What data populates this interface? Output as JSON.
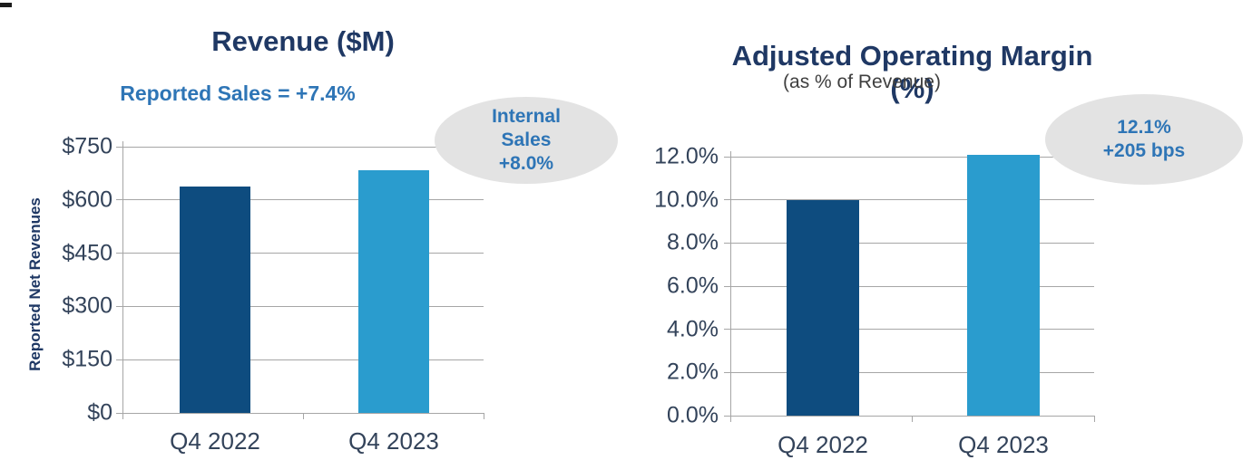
{
  "page": {
    "background": "#ffffff"
  },
  "chart_data": [
    {
      "type": "bar",
      "title": "Revenue ($M)",
      "subtitle": "Reported Sales = +7.4%",
      "ylabel": "Reported Net Revenues",
      "xlabel": "",
      "categories": [
        "Q4 2022",
        "Q4 2023"
      ],
      "values": [
        637,
        684
      ],
      "ylim": [
        0,
        750
      ],
      "ytick_labels": [
        "$750",
        "$600",
        "$450",
        "$300",
        "$150",
        "$0"
      ],
      "grid": true,
      "legend": "none",
      "bar_colors": [
        "#0e4c7f",
        "#2a9cce"
      ],
      "callout": {
        "lines": [
          "Internal",
          "Sales",
          "+8.0%"
        ]
      }
    },
    {
      "type": "bar",
      "title": "Adjusted Operating Margin (%)",
      "subtitle": "(as % of Revenue)",
      "ylabel": "",
      "xlabel": "",
      "categories": [
        "Q4 2022",
        "Q4 2023"
      ],
      "values": [
        10.0,
        12.1
      ],
      "ylim": [
        0,
        12
      ],
      "ytick_labels": [
        "12.0%",
        "10.0%",
        "8.0%",
        "6.0%",
        "4.0%",
        "2.0%",
        "0.0%"
      ],
      "grid": true,
      "legend": "none",
      "bar_colors": [
        "#0e4c7f",
        "#2a9cce"
      ],
      "callout": {
        "lines": [
          "12.1%",
          "+205 bps"
        ]
      }
    }
  ],
  "colors": {
    "bar_dark": "#0e4c7f",
    "bar_light": "#2a9cce",
    "gridline": "#a6a6a6",
    "title_navy": "#1f3864",
    "subtitle_blue": "#2e75b6",
    "subtitle_gray": "#3f3f3f",
    "tick_label": "#33435a",
    "callout_fill": "#e3e3e3",
    "callout_text": "#2e75b6"
  }
}
